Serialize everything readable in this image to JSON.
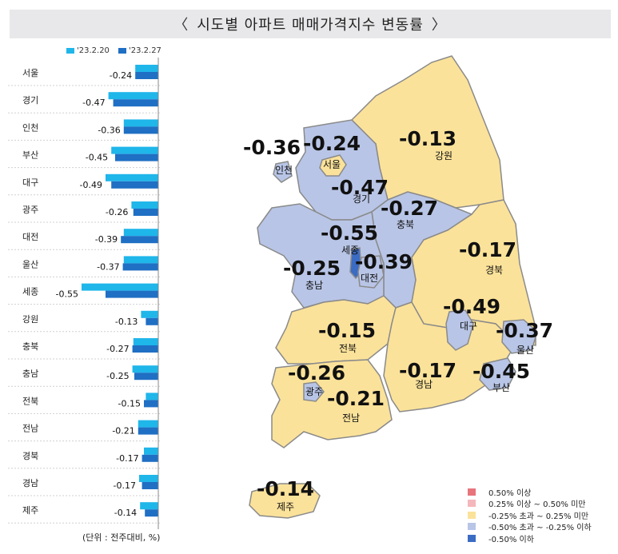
{
  "title": "시도별 아파트 매매가격지수 변동률",
  "title_left_bracket": "〈",
  "title_right_bracket": "〉",
  "unit_note": "(단위 : 전주대비, %)",
  "colors": {
    "prev_week": "#1fb6ea",
    "curr_week": "#1f6fc4",
    "high_up": "#e8747c",
    "mid_up": "#f4b7bb",
    "flat": "#fbe29a",
    "mid_down": "#b8c5e6",
    "high_down": "#3b6cc4"
  },
  "map_legend": [
    {
      "label": "0.50% 이상",
      "color": "#e8747c"
    },
    {
      "label": "0.25% 이상 ~ 0.50% 미만",
      "color": "#f4b7bb"
    },
    {
      "label": "-0.25% 초과 ~ 0.25% 미만",
      "color": "#fbe29a"
    },
    {
      "label": "-0.50% 초과 ~ -0.25% 이하",
      "color": "#b8c5e6"
    },
    {
      "label": "-0.50% 이하",
      "color": "#3b6cc4"
    }
  ],
  "chart_data": {
    "type": "bar",
    "orientation": "horizontal",
    "categories": [
      "서울",
      "경기",
      "인천",
      "부산",
      "대구",
      "광주",
      "대전",
      "울산",
      "세종",
      "강원",
      "충북",
      "충남",
      "전북",
      "전남",
      "경북",
      "경남",
      "제주"
    ],
    "series": [
      {
        "name": "'23.2.20",
        "values": [
          -0.24,
          -0.52,
          -0.36,
          -0.49,
          -0.55,
          -0.28,
          -0.36,
          -0.36,
          -0.8,
          -0.18,
          -0.26,
          -0.27,
          -0.13,
          -0.21,
          -0.15,
          -0.2,
          -0.19
        ]
      },
      {
        "name": "'23.2.27",
        "values": [
          -0.24,
          -0.47,
          -0.36,
          -0.45,
          -0.49,
          -0.26,
          -0.39,
          -0.37,
          -0.55,
          -0.13,
          -0.27,
          -0.25,
          -0.15,
          -0.21,
          -0.17,
          -0.17,
          -0.14
        ]
      }
    ],
    "data_labels": [
      "-0.24",
      "-0.47",
      "-0.36",
      "-0.45",
      "-0.49",
      "-0.26",
      "-0.39",
      "-0.37",
      "-0.55",
      "-0.13",
      "-0.27",
      "-0.25",
      "-0.15",
      "-0.21",
      "-0.17",
      "-0.17",
      "-0.14"
    ]
  },
  "map_regions": [
    {
      "name": "서울",
      "value": "-0.24",
      "color": "#fbe29a"
    },
    {
      "name": "인천",
      "value": "-0.36",
      "color": "#b8c5e6"
    },
    {
      "name": "경기",
      "value": "-0.47",
      "color": "#b8c5e6"
    },
    {
      "name": "강원",
      "value": "-0.13",
      "color": "#fbe29a"
    },
    {
      "name": "충북",
      "value": "-0.27",
      "color": "#b8c5e6"
    },
    {
      "name": "세종",
      "value": "-0.55",
      "color": "#3b6cc4"
    },
    {
      "name": "대전",
      "value": "-0.39",
      "color": "#b8c5e6"
    },
    {
      "name": "충남",
      "value": "-0.25",
      "color": "#b8c5e6"
    },
    {
      "name": "경북",
      "value": "-0.17",
      "color": "#fbe29a"
    },
    {
      "name": "대구",
      "value": "-0.49",
      "color": "#b8c5e6"
    },
    {
      "name": "울산",
      "value": "-0.37",
      "color": "#b8c5e6"
    },
    {
      "name": "전북",
      "value": "-0.15",
      "color": "#fbe29a"
    },
    {
      "name": "광주",
      "value": "-0.26",
      "color": "#b8c5e6"
    },
    {
      "name": "전남",
      "value": "-0.21",
      "color": "#fbe29a"
    },
    {
      "name": "경남",
      "value": "-0.17",
      "color": "#fbe29a"
    },
    {
      "name": "부산",
      "value": "-0.45",
      "color": "#b8c5e6"
    },
    {
      "name": "제주",
      "value": "-0.14",
      "color": "#fbe29a"
    }
  ]
}
